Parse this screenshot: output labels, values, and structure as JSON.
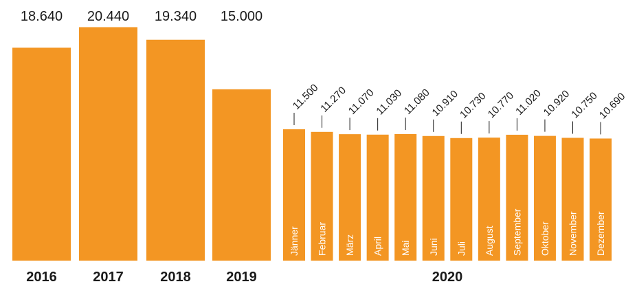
{
  "chart_data": {
    "type": "bar",
    "bar_color": "#F39623",
    "value_color": "#1a1a1a",
    "month_label_color": "#ffffff",
    "annual": {
      "categories": [
        "2016",
        "2017",
        "2018",
        "2019"
      ],
      "values": [
        18640,
        20440,
        19340,
        15000
      ],
      "labels": [
        "18.640",
        "20.440",
        "19.340",
        "15.000"
      ]
    },
    "monthly": {
      "year_label": "2020",
      "categories": [
        "Jänner",
        "Februar",
        "März",
        "April",
        "Mai",
        "Juni",
        "Juli",
        "August",
        "September",
        "Oktober",
        "November",
        "Dezember"
      ],
      "values": [
        11500,
        11270,
        11070,
        11030,
        11080,
        10910,
        10730,
        10770,
        11020,
        10920,
        10750,
        10690
      ],
      "labels": [
        "11.500",
        "11.270",
        "11.070",
        "11.030",
        "11.080",
        "10.910",
        "10.730",
        "10.770",
        "11.020",
        "10.920",
        "10.750",
        "10.690"
      ]
    }
  }
}
